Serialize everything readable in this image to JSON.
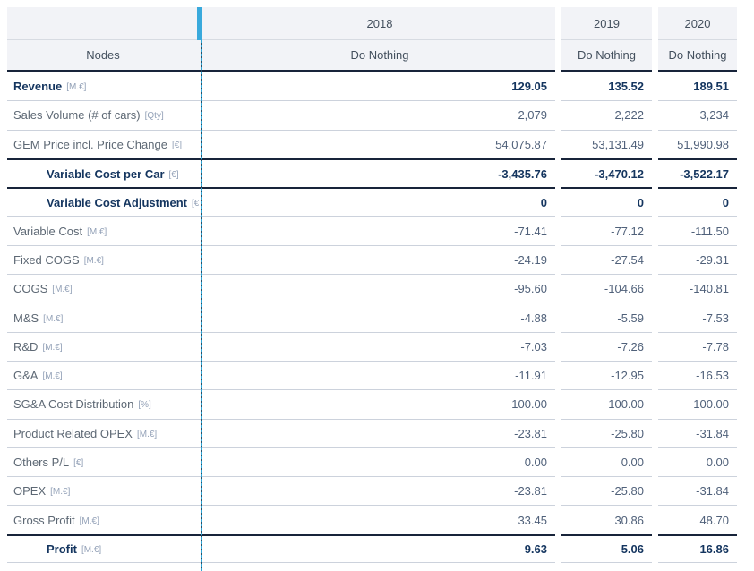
{
  "table": {
    "nodes_header": "Nodes",
    "columns": [
      {
        "year": "2018",
        "scenario": "Do Nothing"
      },
      {
        "year": "2019",
        "scenario": "Do Nothing"
      },
      {
        "year": "2020",
        "scenario": "Do Nothing"
      }
    ],
    "rows": [
      {
        "label": "Revenue",
        "unit": "[M.€]",
        "values": [
          "129.05",
          "135.52",
          "189.51"
        ],
        "emphasis": true,
        "indent": false,
        "rule_above": false
      },
      {
        "label": "Sales Volume (# of cars)",
        "unit": "[Qty]",
        "values": [
          "2,079",
          "2,222",
          "3,234"
        ],
        "emphasis": false,
        "indent": false,
        "rule_above": false
      },
      {
        "label": "GEM Price incl. Price Change",
        "unit": "[€]",
        "values": [
          "54,075.87",
          "53,131.49",
          "51,990.98"
        ],
        "emphasis": false,
        "indent": false,
        "rule_above": false
      },
      {
        "label": "Variable Cost per Car",
        "unit": "[€]",
        "values": [
          "-3,435.76",
          "-3,470.12",
          "-3,522.17"
        ],
        "emphasis": true,
        "indent": true,
        "rule_above": true
      },
      {
        "label": "Variable Cost Adjustment",
        "unit": "[€]",
        "values": [
          "0",
          "0",
          "0"
        ],
        "emphasis": true,
        "indent": true,
        "rule_above": true
      },
      {
        "label": "Variable Cost",
        "unit": "[M.€]",
        "values": [
          "-71.41",
          "-77.12",
          "-111.50"
        ],
        "emphasis": false,
        "indent": false,
        "rule_above": false
      },
      {
        "label": "Fixed COGS",
        "unit": "[M.€]",
        "values": [
          "-24.19",
          "-27.54",
          "-29.31"
        ],
        "emphasis": false,
        "indent": false,
        "rule_above": false
      },
      {
        "label": "COGS",
        "unit": "[M.€]",
        "values": [
          "-95.60",
          "-104.66",
          "-140.81"
        ],
        "emphasis": false,
        "indent": false,
        "rule_above": false
      },
      {
        "label": "M&S",
        "unit": "[M.€]",
        "values": [
          "-4.88",
          "-5.59",
          "-7.53"
        ],
        "emphasis": false,
        "indent": false,
        "rule_above": false
      },
      {
        "label": "R&D",
        "unit": "[M.€]",
        "values": [
          "-7.03",
          "-7.26",
          "-7.78"
        ],
        "emphasis": false,
        "indent": false,
        "rule_above": false
      },
      {
        "label": "G&A",
        "unit": "[M.€]",
        "values": [
          "-11.91",
          "-12.95",
          "-16.53"
        ],
        "emphasis": false,
        "indent": false,
        "rule_above": false
      },
      {
        "label": "SG&A Cost Distribution",
        "unit": "[%]",
        "values": [
          "100.00",
          "100.00",
          "100.00"
        ],
        "emphasis": false,
        "indent": false,
        "rule_above": false
      },
      {
        "label": "Product Related OPEX",
        "unit": "[M.€]",
        "values": [
          "-23.81",
          "-25.80",
          "-31.84"
        ],
        "emphasis": false,
        "indent": false,
        "rule_above": false
      },
      {
        "label": "Others P/L",
        "unit": "[€]",
        "values": [
          "0.00",
          "0.00",
          "0.00"
        ],
        "emphasis": false,
        "indent": false,
        "rule_above": false
      },
      {
        "label": "OPEX",
        "unit": "[M.€]",
        "values": [
          "-23.81",
          "-25.80",
          "-31.84"
        ],
        "emphasis": false,
        "indent": false,
        "rule_above": false
      },
      {
        "label": "Gross Profit",
        "unit": "[M.€]",
        "values": [
          "33.45",
          "30.86",
          "48.70"
        ],
        "emphasis": false,
        "indent": false,
        "rule_above": false
      },
      {
        "label": "Profit",
        "unit": "[M.€]",
        "values": [
          "9.63",
          "5.06",
          "16.86"
        ],
        "emphasis": true,
        "indent": true,
        "rule_above": true
      }
    ]
  },
  "colors": {
    "accent_bar": "#39a9dc",
    "divider_dash": "#2ea5d6",
    "header_background": "#f2f3f7",
    "dark_rule": "#18243a",
    "light_rule": "#ccd2dc",
    "emphasis_text": "#14355f",
    "label_text": "#5d6874",
    "value_text": "#50617a",
    "unit_text": "#94a2b8"
  }
}
